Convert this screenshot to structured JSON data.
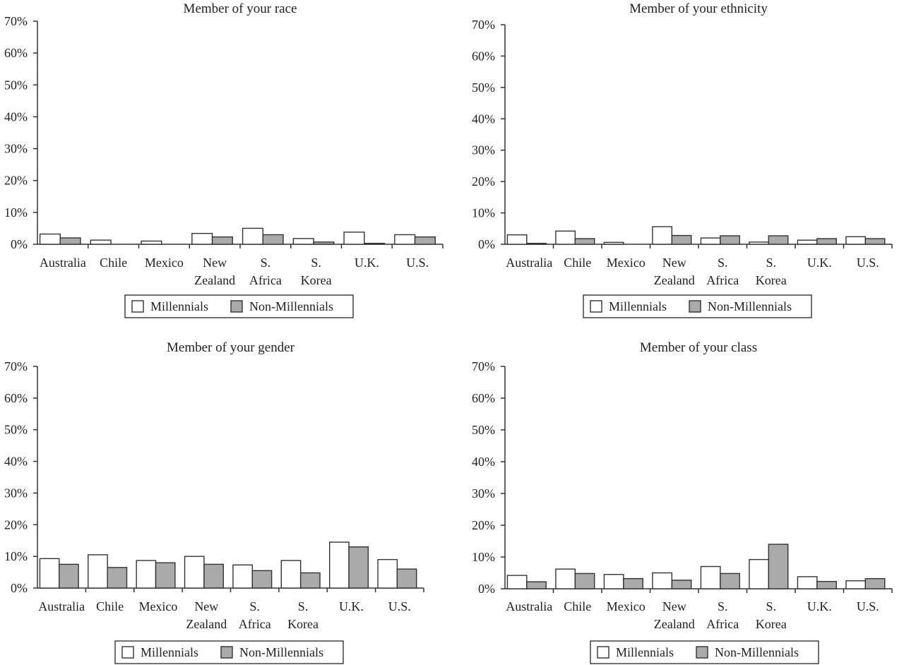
{
  "chart_data": [
    {
      "type": "bar",
      "title": "Member of your race",
      "categories": [
        [
          "Australia"
        ],
        [
          "Chile"
        ],
        [
          "Mexico"
        ],
        [
          "New",
          "Zealand"
        ],
        [
          "S.",
          "Africa"
        ],
        [
          "S.",
          "Korea"
        ],
        [
          "U.K."
        ],
        [
          "U.S."
        ]
      ],
      "yticks": [
        "0%",
        "10%",
        "20%",
        "30%",
        "40%",
        "50%",
        "60%",
        "70%"
      ],
      "ylim": [
        0,
        70
      ],
      "series": [
        {
          "name": "Millennials",
          "values": [
            3.2,
            1.3,
            1.0,
            3.4,
            5.0,
            1.8,
            3.8,
            3.0
          ]
        },
        {
          "name": "Non-Millennials",
          "values": [
            2.0,
            0,
            0,
            2.3,
            3.0,
            0.7,
            0.3,
            2.3
          ]
        }
      ],
      "legend": [
        "Millennials",
        "Non-Millennials"
      ]
    },
    {
      "type": "bar",
      "title": "Member of your ethnicity",
      "categories": [
        [
          "Australia"
        ],
        [
          "Chile"
        ],
        [
          "Mexico"
        ],
        [
          "New",
          "Zealand"
        ],
        [
          "S.",
          "Africa"
        ],
        [
          "S.",
          "Korea"
        ],
        [
          "U.K."
        ],
        [
          "U.S."
        ]
      ],
      "yticks": [
        "0%",
        "10%",
        "20%",
        "30%",
        "40%",
        "50%",
        "60%",
        "70%"
      ],
      "ylim": [
        0,
        70
      ],
      "series": [
        {
          "name": "Millennials",
          "values": [
            3.0,
            4.2,
            0.6,
            5.6,
            2.0,
            0.7,
            1.3,
            2.4
          ]
        },
        {
          "name": "Non-Millennials",
          "values": [
            0.3,
            1.8,
            0,
            2.8,
            2.7,
            2.7,
            1.8,
            1.8
          ]
        }
      ],
      "legend": [
        "Millennials",
        "Non-Millennials"
      ]
    },
    {
      "type": "bar",
      "title": "Member of your gender",
      "categories": [
        [
          "Australia"
        ],
        [
          "Chile"
        ],
        [
          "Mexico"
        ],
        [
          "New",
          "Zealand"
        ],
        [
          "S.",
          "Africa"
        ],
        [
          "S.",
          "Korea"
        ],
        [
          "U.K."
        ],
        [
          "U.S."
        ]
      ],
      "yticks": [
        "0%",
        "10%",
        "20%",
        "30%",
        "40%",
        "50%",
        "60%",
        "70%"
      ],
      "ylim": [
        0,
        70
      ],
      "series": [
        {
          "name": "Millennials",
          "values": [
            9.3,
            10.5,
            8.7,
            10.0,
            7.3,
            8.7,
            14.5,
            9.0
          ]
        },
        {
          "name": "Non-Millennials",
          "values": [
            7.5,
            6.5,
            8.0,
            7.5,
            5.5,
            4.8,
            13.0,
            6.0
          ]
        }
      ],
      "legend": [
        "Millennials",
        "Non-Millennials"
      ]
    },
    {
      "type": "bar",
      "title": "Member of your class",
      "categories": [
        [
          "Australia"
        ],
        [
          "Chile"
        ],
        [
          "Mexico"
        ],
        [
          "New",
          "Zealand"
        ],
        [
          "S.",
          "Africa"
        ],
        [
          "S.",
          "Korea"
        ],
        [
          "U.K."
        ],
        [
          "U.S."
        ]
      ],
      "yticks": [
        "0%",
        "10%",
        "20%",
        "30%",
        "40%",
        "50%",
        "60%",
        "70%"
      ],
      "ylim": [
        0,
        70
      ],
      "series": [
        {
          "name": "Millennials",
          "values": [
            4.2,
            6.2,
            4.5,
            5.0,
            7.0,
            9.2,
            3.8,
            2.5
          ]
        },
        {
          "name": "Non-Millennials",
          "values": [
            2.2,
            4.8,
            3.2,
            2.7,
            4.8,
            14.0,
            2.3,
            3.2
          ]
        }
      ],
      "legend": [
        "Millennials",
        "Non-Millennials"
      ]
    }
  ]
}
